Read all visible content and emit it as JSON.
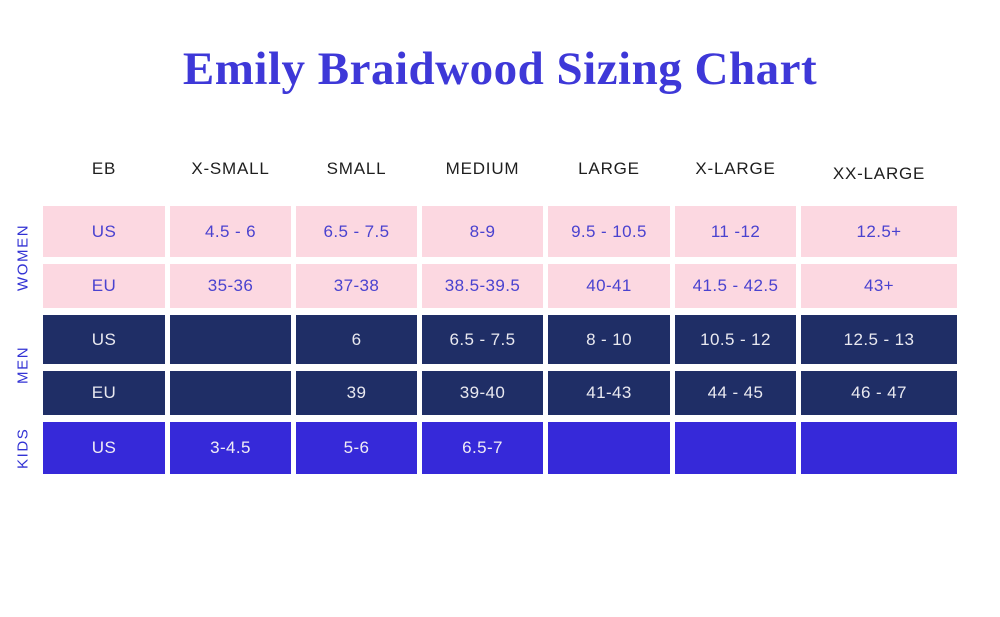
{
  "title": "Emily Braidwood Sizing Chart",
  "colors": {
    "background": "#ffffff",
    "title_text": "#3e38d8",
    "header_text": "#1e1e1e",
    "group_label_text": "#3232d4",
    "women_cell_bg": "#fcd8e1",
    "women_cell_text": "#4a42cf",
    "men_cell_bg": "#1f2e66",
    "men_cell_text": "#e9e9f0",
    "kids_cell_bg": "#3629d9",
    "kids_cell_text": "#f0ecf6"
  },
  "chart_data": {
    "type": "table",
    "title": "Emily Braidwood Sizing Chart",
    "columns": [
      "EB",
      "X-SMALL",
      "SMALL",
      "MEDIUM",
      "LARGE",
      "X-LARGE",
      "XX-LARGE"
    ],
    "groups": [
      {
        "label": "WOMEN",
        "rows": [
          {
            "cells": [
              "US",
              "4.5 - 6",
              "6.5 - 7.5",
              "8-9",
              "9.5 - 10.5",
              "11 -12",
              "12.5+"
            ]
          },
          {
            "cells": [
              "EU",
              "35-36",
              "37-38",
              "38.5-39.5",
              "40-41",
              "41.5 - 42.5",
              "43+"
            ]
          }
        ]
      },
      {
        "label": "MEN",
        "rows": [
          {
            "cells": [
              "US",
              "",
              "6",
              "6.5 - 7.5",
              "8 - 10",
              "10.5 - 12",
              "12.5 - 13"
            ]
          },
          {
            "cells": [
              "EU",
              "",
              "39",
              "39-40",
              "41-43",
              "44 - 45",
              "46 - 47"
            ]
          }
        ]
      },
      {
        "label": "KIDS",
        "rows": [
          {
            "cells": [
              "US",
              "3-4.5",
              "5-6",
              "6.5-7",
              "",
              "",
              ""
            ]
          }
        ]
      }
    ]
  }
}
